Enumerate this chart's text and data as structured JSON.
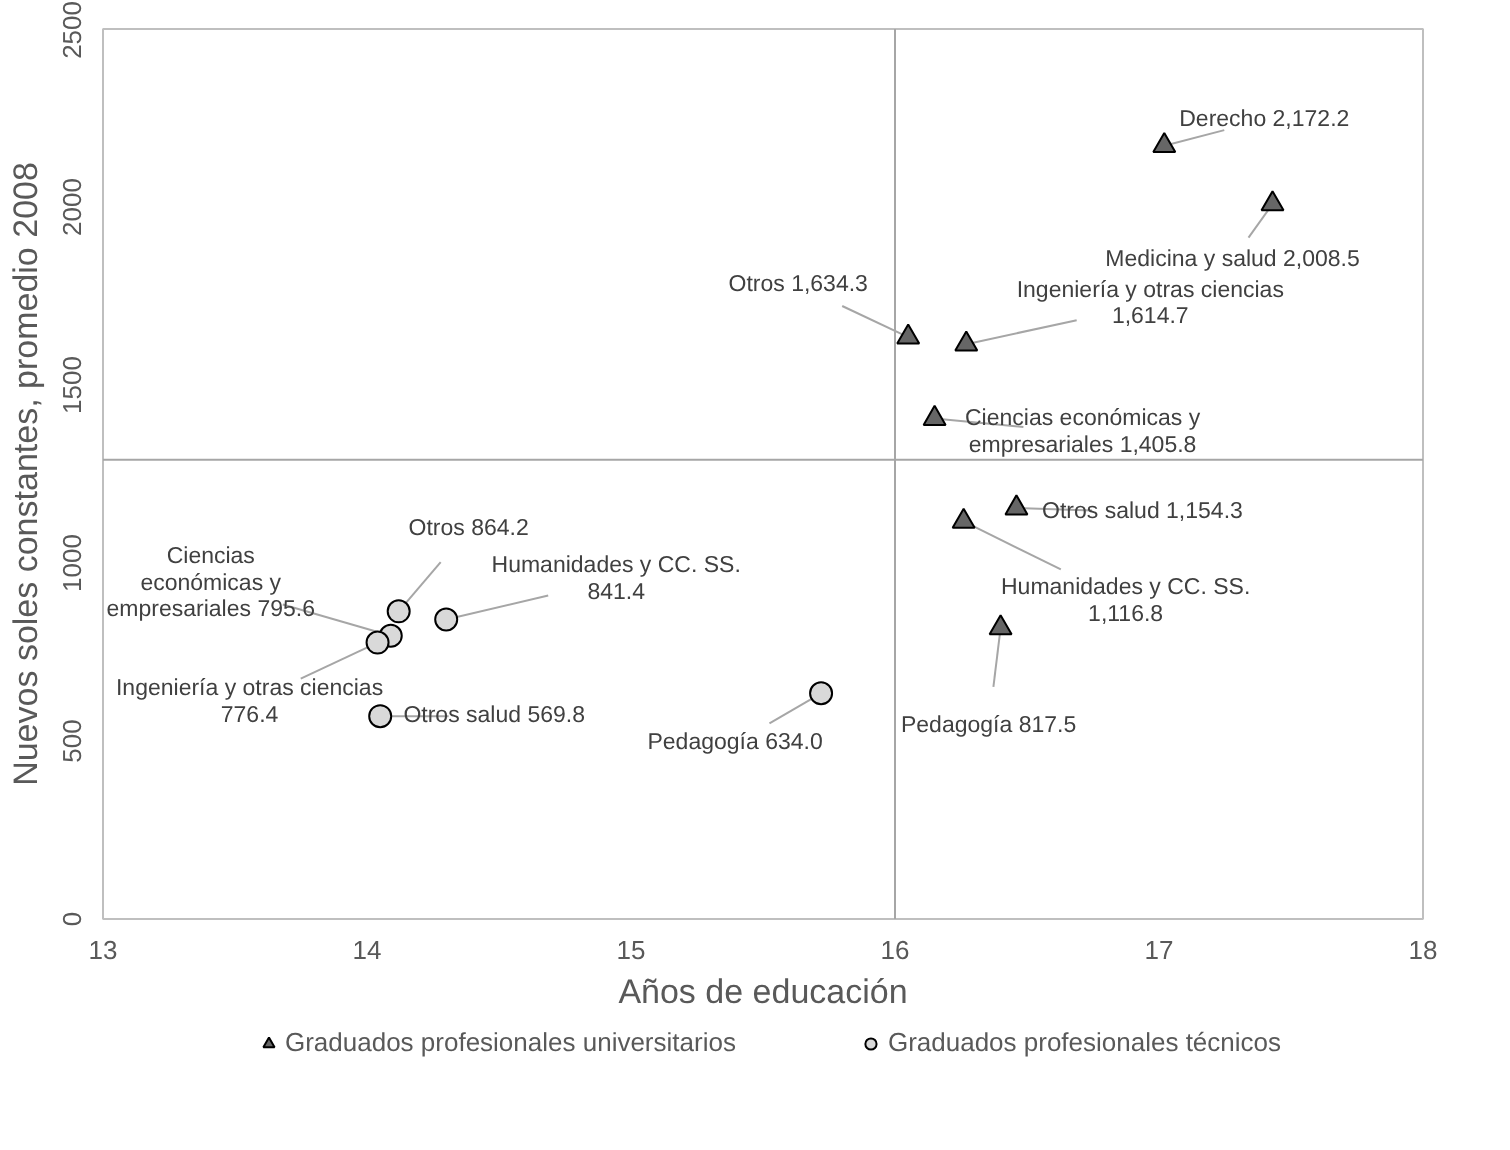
{
  "chart_data": {
    "type": "scatter",
    "xlabel": "Años de educación",
    "ylabel": "Nuevos soles constantes, promedio 2008",
    "xlim": [
      13,
      18
    ],
    "ylim": [
      0,
      2500
    ],
    "xticks": [
      13,
      14,
      15,
      16,
      17,
      18
    ],
    "yticks": [
      0,
      500,
      1000,
      1500,
      2000,
      2500
    ],
    "grid": false,
    "legend": "bottom",
    "ref_lines": [
      {
        "axis": "x",
        "value": 16,
        "color": "#a6a6a6"
      },
      {
        "axis": "y",
        "value": 1290,
        "color": "#a6a6a6"
      }
    ],
    "series": [
      {
        "name": "Graduados profesionales universitarios",
        "color": "#666666",
        "marker": "triangle",
        "x": [
          17.02,
          17.43,
          16.05,
          16.27,
          16.15,
          16.46,
          16.26,
          16.4
        ],
        "values": [
          2172.2,
          2008.5,
          1634.3,
          1614.7,
          1405.8,
          1154.3,
          1116.8,
          817.5
        ],
        "value_labels": [
          "Derecho 2,172.2",
          "Medicina y salud 2,008.5",
          "Otros 1,634.3",
          "Ingeniería y otras ciencias\n1,614.7",
          "Ciencias económicas y\nempresariales 1,405.8",
          "Otros salud 1,154.3",
          "Humanidades y CC. SS.\n1,116.8",
          "Pedagogía 817.5"
        ]
      },
      {
        "name": "Graduados profesionales técnicos",
        "color": "#d9d9d9",
        "marker": "circle",
        "x": [
          14.12,
          14.09,
          14.04,
          14.3,
          14.05,
          15.72
        ],
        "values": [
          864.2,
          795.6,
          776.4,
          841.4,
          569.8,
          634.0
        ],
        "value_labels": [
          "Otros 864.2",
          "Ciencias\neconómicas y\nempresariales 795.6",
          "Ingeniería y otras ciencias\n776.4",
          "Humanidades y CC. SS.\n841.4",
          "Otros salud 569.8",
          "Pedagogía 634.0"
        ]
      }
    ]
  }
}
